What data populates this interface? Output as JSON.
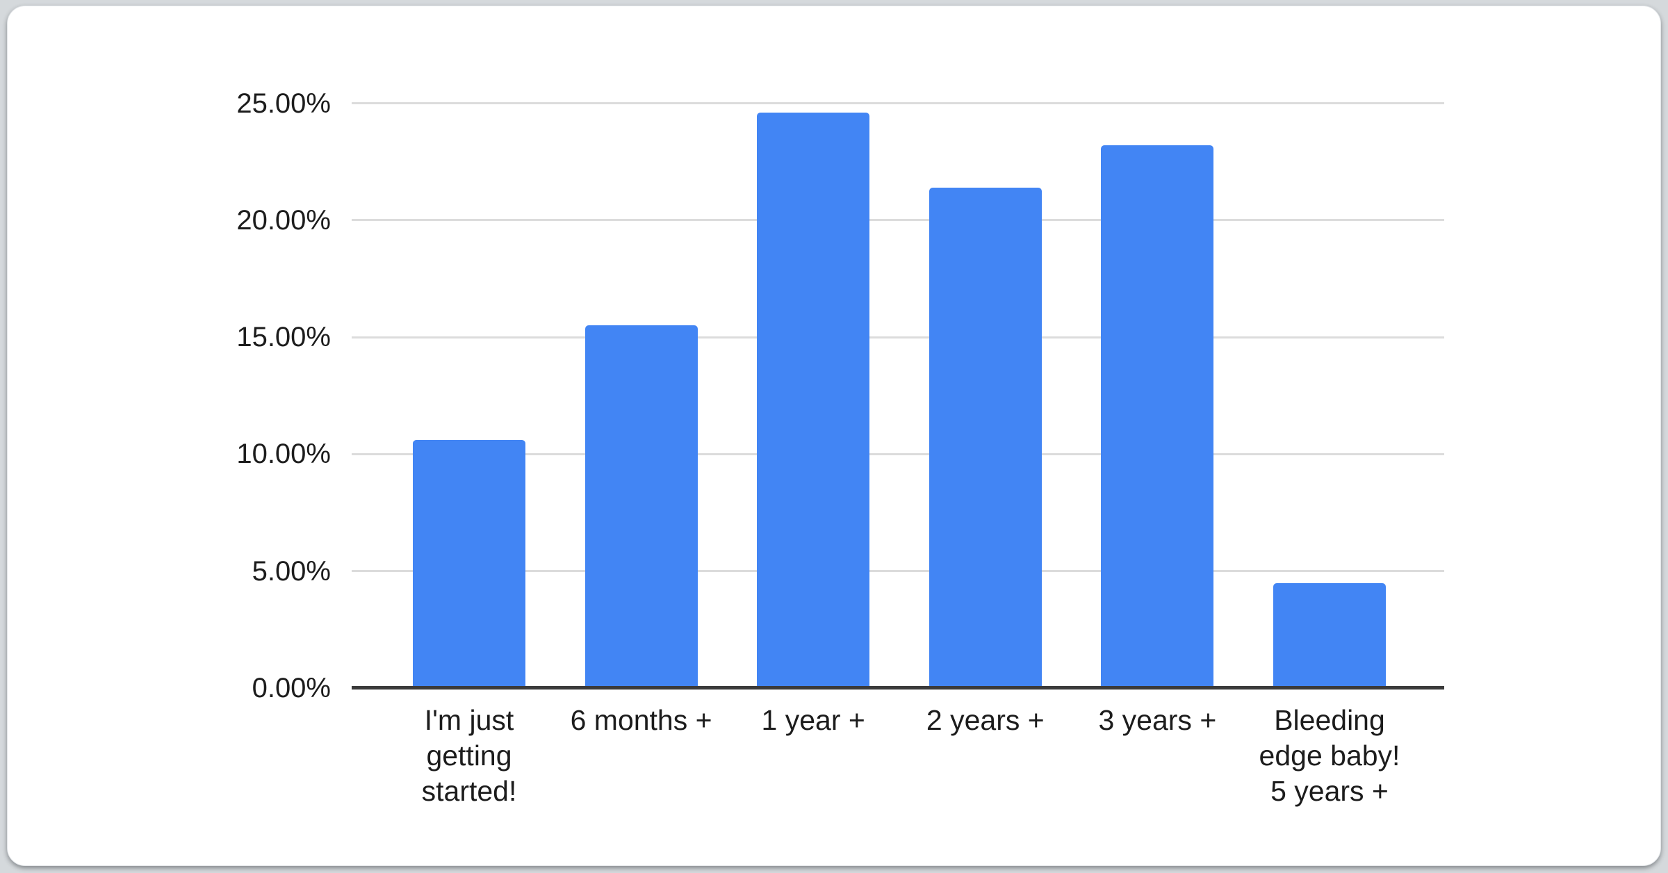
{
  "page": {
    "background_color": "#d5d9dc",
    "card_background_color": "#ffffff"
  },
  "chart_data": {
    "type": "bar",
    "title": "",
    "xlabel": "",
    "ylabel": "",
    "categories": [
      "I'm just getting started!",
      "6 months +",
      "1 year +",
      "2 years +",
      "3 years +",
      "Bleeding edge baby! 5 years +"
    ],
    "category_label_lines": [
      [
        "I'm just",
        "getting",
        "started!"
      ],
      [
        "6 months +"
      ],
      [
        "1 year +"
      ],
      [
        "2 years +"
      ],
      [
        "3 years +"
      ],
      [
        "Bleeding",
        "edge baby!",
        "5 years +"
      ]
    ],
    "values": [
      10.6,
      15.5,
      24.6,
      21.4,
      23.2,
      4.5
    ],
    "unit": "%",
    "y_ticks": [
      {
        "value": 0,
        "label": "0.00%"
      },
      {
        "value": 5,
        "label": "5.00%"
      },
      {
        "value": 10,
        "label": "10.00%"
      },
      {
        "value": 15,
        "label": "15.00%"
      },
      {
        "value": 20,
        "label": "20.00%"
      },
      {
        "value": 25,
        "label": "25.00%"
      }
    ],
    "ylim": [
      0,
      26.2
    ],
    "grid": true,
    "legend_position": "none",
    "colors": {
      "bar": "#4285f4",
      "gridline": "#dcdcdc",
      "baseline": "#3a3a3a",
      "label": "#1c1c1c"
    }
  }
}
